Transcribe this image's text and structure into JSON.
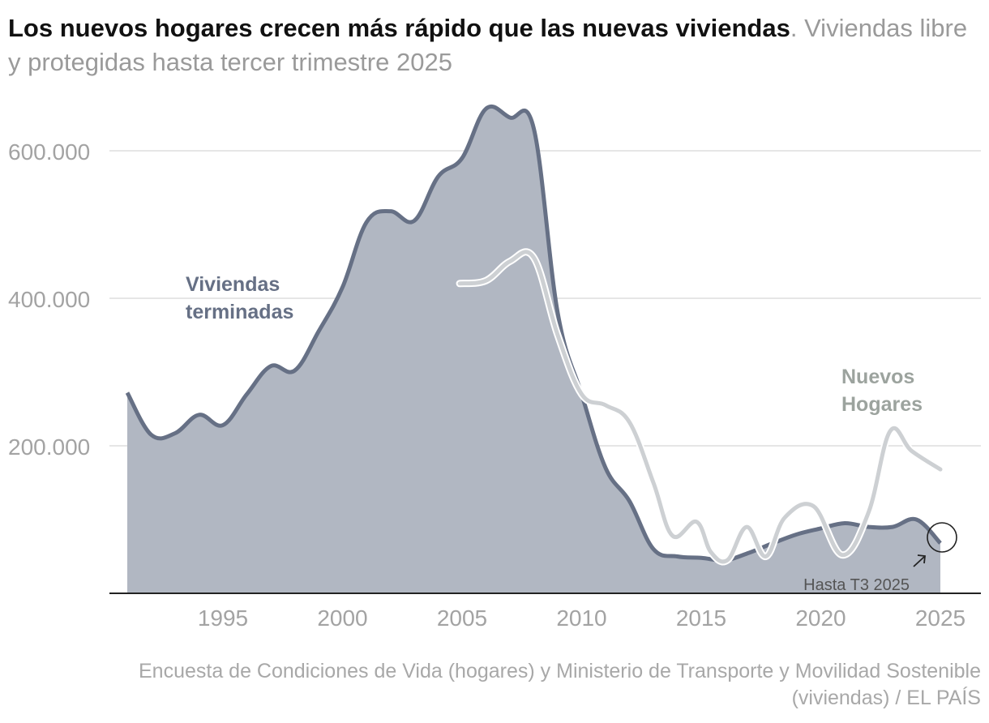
{
  "title": {
    "bold": "Los nuevos hogares crecen más rápido que las nuevas viviendas",
    "rest": ". Viviendas libre y protegidas hasta tercer trimestre 2025"
  },
  "source": "Encuesta de Condiciones de Vida (hogares) y Ministerio de Transporte y Movilidad Sostenible (viviendas) / EL PAÍS",
  "colors": {
    "viviendas_line": "#667085",
    "viviendas_fill": "#b1b7c2",
    "hogares_line": "#cdd0d3",
    "grid": "#dddddd",
    "axis_text": "#a3a3a3",
    "hogares_label": "#9ca39e"
  },
  "chart_data": {
    "type": "area",
    "x_range": [
      1991,
      2025
    ],
    "ylim": [
      0,
      650000
    ],
    "yticks": [
      {
        "value": 200000,
        "label": "200.000"
      },
      {
        "value": 400000,
        "label": "400.000"
      },
      {
        "value": 600000,
        "label": "600.000"
      }
    ],
    "xticks": [
      {
        "value": 1995,
        "label": "1995"
      },
      {
        "value": 2000,
        "label": "2000"
      },
      {
        "value": 2005,
        "label": "2005"
      },
      {
        "value": 2010,
        "label": "2010"
      },
      {
        "value": 2015,
        "label": "2015"
      },
      {
        "value": 2020,
        "label": "2020"
      },
      {
        "value": 2025,
        "label": "2025"
      }
    ],
    "grid": true,
    "series": [
      {
        "name": "Viviendas terminadas",
        "style": "area",
        "points": [
          [
            1991,
            272000
          ],
          [
            1992,
            215000
          ],
          [
            1993,
            217000
          ],
          [
            1994,
            242000
          ],
          [
            1995,
            228000
          ],
          [
            1996,
            270000
          ],
          [
            1997,
            308000
          ],
          [
            1998,
            302000
          ],
          [
            1999,
            355000
          ],
          [
            2000,
            415000
          ],
          [
            2001,
            503000
          ],
          [
            2002,
            518000
          ],
          [
            2003,
            505000
          ],
          [
            2004,
            565000
          ],
          [
            2005,
            590000
          ],
          [
            2006,
            657000
          ],
          [
            2007,
            645000
          ],
          [
            2008,
            630000
          ],
          [
            2009,
            380000
          ],
          [
            2010,
            270000
          ],
          [
            2011,
            170000
          ],
          [
            2012,
            125000
          ],
          [
            2013,
            60000
          ],
          [
            2014,
            50000
          ],
          [
            2015,
            48000
          ],
          [
            2016,
            45000
          ],
          [
            2017,
            55000
          ],
          [
            2018,
            68000
          ],
          [
            2019,
            80000
          ],
          [
            2020,
            88000
          ],
          [
            2021,
            95000
          ],
          [
            2022,
            90000
          ],
          [
            2023,
            90000
          ],
          [
            2024,
            100000
          ],
          [
            2025,
            68000
          ]
        ]
      },
      {
        "name": "Nuevos Hogares",
        "style": "line",
        "points": [
          [
            2004.9,
            420000
          ],
          [
            2006,
            424000
          ],
          [
            2007,
            450000
          ],
          [
            2008,
            455000
          ],
          [
            2009,
            350000
          ],
          [
            2010,
            270000
          ],
          [
            2011,
            255000
          ],
          [
            2012,
            232000
          ],
          [
            2013,
            150000
          ],
          [
            2013.8,
            78000
          ],
          [
            2014.8,
            97000
          ],
          [
            2015.4,
            56000
          ],
          [
            2016.1,
            45000
          ],
          [
            2016.9,
            90000
          ],
          [
            2017.7,
            50000
          ],
          [
            2018.5,
            103000
          ],
          [
            2019.7,
            118000
          ],
          [
            2020.9,
            52000
          ],
          [
            2022,
            110000
          ],
          [
            2022.9,
            220000
          ],
          [
            2023.8,
            193000
          ],
          [
            2025,
            168000
          ]
        ]
      }
    ],
    "annotations": [
      {
        "text": "Hasta T3 2025",
        "x": 2025,
        "y": 68000
      }
    ]
  },
  "labels": {
    "viviendas": [
      "Viviendas",
      "terminadas"
    ],
    "hogares": [
      "Nuevos",
      "Hogares"
    ]
  }
}
